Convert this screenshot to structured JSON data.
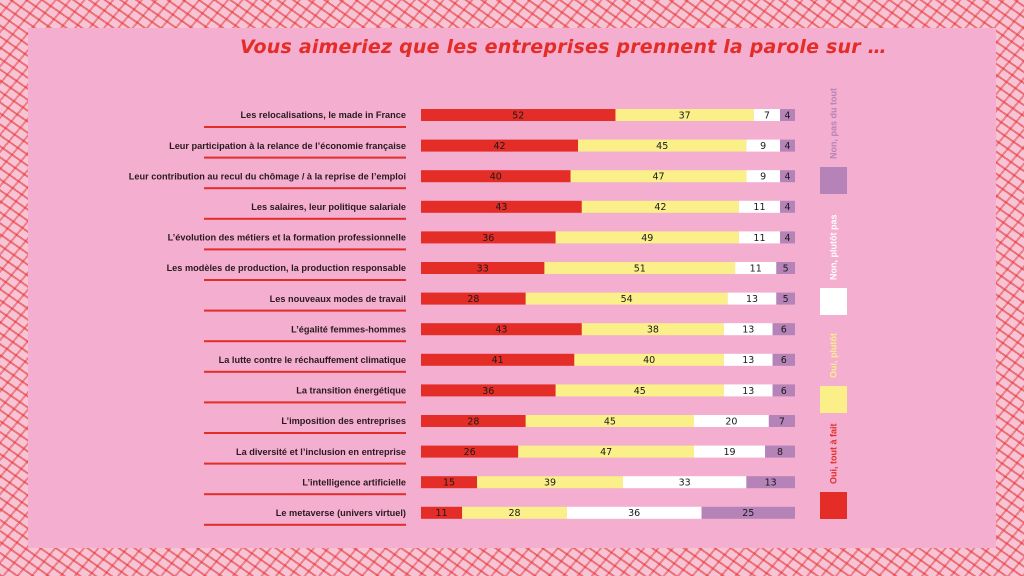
{
  "chart_data": {
    "type": "bar",
    "stacked": true,
    "orientation": "horizontal",
    "title": "Vous aimeriez que les entreprises prennent la parole sur …",
    "categories": [
      "Les relocalisations, le made in France",
      "Leur participation à la relance de l’économie française",
      "Leur contribution au recul du chômage / à la reprise de l’emploi",
      "Les salaires, leur politique salariale",
      "L’évolution des métiers et la formation professionnelle",
      "Les modèles de production, la production responsable",
      "Les nouveaux modes de travail",
      "L’égalité femmes-hommes",
      "La lutte contre le réchauffement climatique",
      "La transition énergétique",
      "L’imposition des entreprises",
      "La diversité et l’inclusion en entreprise",
      "L’intelligence artificielle",
      "Le metaverse (univers virtuel)"
    ],
    "series": [
      {
        "name": "Oui, tout à fait",
        "color": "#e32d26",
        "legend_text_color": "#e32d26",
        "values": [
          52,
          42,
          40,
          43,
          36,
          33,
          28,
          43,
          41,
          36,
          28,
          26,
          15,
          11
        ]
      },
      {
        "name": "Oui, plutôt",
        "color": "#fbef8a",
        "legend_text_color": "#fbef8a",
        "values": [
          37,
          45,
          47,
          42,
          49,
          51,
          54,
          38,
          40,
          45,
          45,
          47,
          39,
          28
        ]
      },
      {
        "name": "Non, plutôt pas",
        "color": "#ffffff",
        "legend_text_color": "#ffffff",
        "values": [
          7,
          9,
          9,
          11,
          11,
          11,
          13,
          13,
          13,
          13,
          20,
          19,
          33,
          36
        ]
      },
      {
        "name": "Non, pas du tout",
        "color": "#b583b8",
        "legend_text_color": "#b583b8",
        "values": [
          4,
          4,
          4,
          4,
          4,
          5,
          5,
          6,
          6,
          6,
          7,
          8,
          13,
          25
        ]
      }
    ],
    "xlim": [
      0,
      100
    ],
    "grid": false,
    "legend": "right, vertical"
  },
  "colors": {
    "background_pattern": "#e32d26",
    "panel": "#f3aed0",
    "title": "#e32d26",
    "label_underline": "#e32d26"
  }
}
